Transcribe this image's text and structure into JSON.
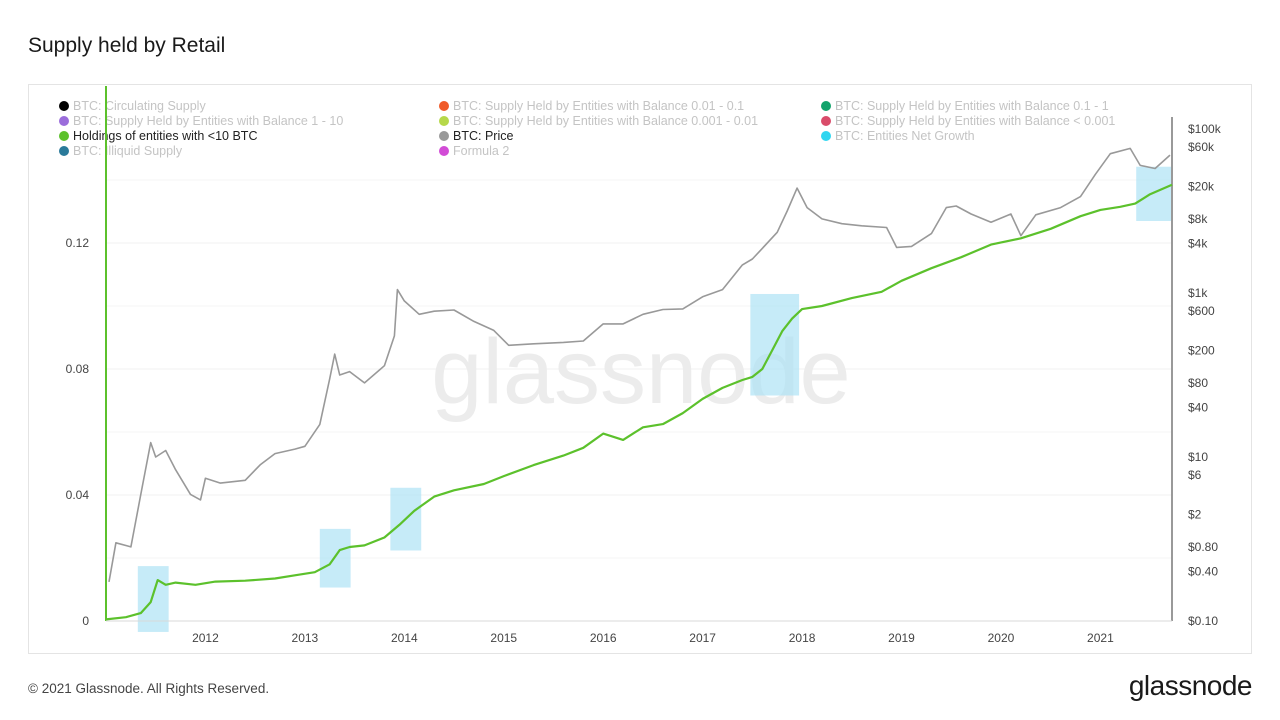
{
  "title": "Supply held by Retail",
  "footer": "© 2021 Glassnode. All Rights Reserved.",
  "brand": "glassnode",
  "watermark": "glassnode",
  "legend": [
    {
      "label": "BTC: Circulating Supply",
      "color": "#000000",
      "active": false
    },
    {
      "label": "BTC: Supply Held by Entities with Balance 0.01 - 0.1",
      "color": "#f05a28",
      "active": false
    },
    {
      "label": "BTC: Supply Held by Entities with Balance 0.1 - 1",
      "color": "#12a36b",
      "active": false
    },
    {
      "label": "BTC: Supply Held by Entities with Balance 1 - 10",
      "color": "#9b6ddb",
      "active": false
    },
    {
      "label": "BTC: Supply Held by Entities with Balance 0.001 - 0.01",
      "color": "#b6d84a",
      "active": false
    },
    {
      "label": "BTC: Supply Held by Entities with Balance < 0.001",
      "color": "#d94c6a",
      "active": false
    },
    {
      "label": "Holdings of entities with <10 BTC",
      "color": "#5cc12c",
      "active": true
    },
    {
      "label": "BTC: Price",
      "color": "#999999",
      "active": true
    },
    {
      "label": "BTC: Entities Net Growth",
      "color": "#2fd6f0",
      "active": false
    },
    {
      "label": "BTC: Illiquid Supply",
      "color": "#2a7a9a",
      "active": false
    },
    {
      "label": "Formula 2",
      "color": "#d24cd6",
      "active": false
    }
  ],
  "chart_data": {
    "type": "line",
    "x_ticks": [
      "2012",
      "2013",
      "2014",
      "2015",
      "2016",
      "2017",
      "2018",
      "2019",
      "2020",
      "2021"
    ],
    "y_left": {
      "ticks": [
        "0",
        "0.04",
        "0.08",
        "0.12"
      ],
      "values": [
        0,
        0.04,
        0.08,
        0.12
      ],
      "range": [
        0,
        0.16
      ]
    },
    "y_right": {
      "scale": "log",
      "ticks": [
        "$0.10",
        "$0.40",
        "$0.80",
        "$2",
        "$6",
        "$10",
        "$40",
        "$80",
        "$200",
        "$600",
        "$1k",
        "$4k",
        "$8k",
        "$20k",
        "$60k",
        "$100k"
      ],
      "values": [
        0.1,
        0.4,
        0.8,
        2,
        6,
        10,
        40,
        80,
        200,
        600,
        1000,
        4000,
        8000,
        20000,
        60000,
        100000
      ],
      "range": [
        0.1,
        100000
      ]
    },
    "x_range": [
      2011.0,
      2021.72
    ],
    "series": [
      {
        "name": "Holdings of entities with <10 BTC",
        "axis": "left",
        "color": "#5cc12c",
        "points": [
          [
            2011.0,
            0.0005
          ],
          [
            2011.2,
            0.0012
          ],
          [
            2011.35,
            0.0025
          ],
          [
            2011.45,
            0.006
          ],
          [
            2011.52,
            0.013
          ],
          [
            2011.6,
            0.0115
          ],
          [
            2011.7,
            0.0122
          ],
          [
            2011.9,
            0.0115
          ],
          [
            2012.1,
            0.0125
          ],
          [
            2012.4,
            0.0128
          ],
          [
            2012.7,
            0.0135
          ],
          [
            2012.9,
            0.0145
          ],
          [
            2013.1,
            0.0155
          ],
          [
            2013.25,
            0.018
          ],
          [
            2013.35,
            0.0225
          ],
          [
            2013.45,
            0.0235
          ],
          [
            2013.6,
            0.024
          ],
          [
            2013.8,
            0.0265
          ],
          [
            2013.95,
            0.0305
          ],
          [
            2014.1,
            0.035
          ],
          [
            2014.3,
            0.0395
          ],
          [
            2014.5,
            0.0415
          ],
          [
            2014.8,
            0.0435
          ],
          [
            2015.0,
            0.046
          ],
          [
            2015.3,
            0.0495
          ],
          [
            2015.6,
            0.0525
          ],
          [
            2015.8,
            0.055
          ],
          [
            2016.0,
            0.0595
          ],
          [
            2016.2,
            0.0575
          ],
          [
            2016.4,
            0.0615
          ],
          [
            2016.6,
            0.0625
          ],
          [
            2016.8,
            0.066
          ],
          [
            2017.0,
            0.0705
          ],
          [
            2017.2,
            0.074
          ],
          [
            2017.4,
            0.0765
          ],
          [
            2017.5,
            0.0775
          ],
          [
            2017.6,
            0.08
          ],
          [
            2017.7,
            0.086
          ],
          [
            2017.8,
            0.092
          ],
          [
            2017.9,
            0.096
          ],
          [
            2018.0,
            0.099
          ],
          [
            2018.2,
            0.1
          ],
          [
            2018.5,
            0.1025
          ],
          [
            2018.8,
            0.1045
          ],
          [
            2019.0,
            0.108
          ],
          [
            2019.3,
            0.112
          ],
          [
            2019.6,
            0.1155
          ],
          [
            2019.9,
            0.1195
          ],
          [
            2020.2,
            0.1215
          ],
          [
            2020.5,
            0.1245
          ],
          [
            2020.8,
            0.1285
          ],
          [
            2021.0,
            0.1305
          ],
          [
            2021.2,
            0.1315
          ],
          [
            2021.35,
            0.1325
          ],
          [
            2021.5,
            0.1355
          ],
          [
            2021.72,
            0.1385
          ]
        ]
      },
      {
        "name": "BTC: Price",
        "axis": "right",
        "color": "#999999",
        "points": [
          [
            2011.03,
            0.3
          ],
          [
            2011.1,
            0.9
          ],
          [
            2011.25,
            0.8
          ],
          [
            2011.35,
            3.5
          ],
          [
            2011.45,
            15
          ],
          [
            2011.5,
            10
          ],
          [
            2011.6,
            12
          ],
          [
            2011.7,
            7
          ],
          [
            2011.85,
            3.5
          ],
          [
            2011.95,
            3
          ],
          [
            2012.0,
            5.5
          ],
          [
            2012.15,
            4.8
          ],
          [
            2012.4,
            5.2
          ],
          [
            2012.55,
            8
          ],
          [
            2012.7,
            11
          ],
          [
            2012.9,
            12.5
          ],
          [
            2013.0,
            13.5
          ],
          [
            2013.15,
            25
          ],
          [
            2013.25,
            90
          ],
          [
            2013.3,
            180
          ],
          [
            2013.35,
            100
          ],
          [
            2013.45,
            110
          ],
          [
            2013.6,
            80
          ],
          [
            2013.8,
            130
          ],
          [
            2013.9,
            300
          ],
          [
            2013.93,
            1100
          ],
          [
            2014.0,
            800
          ],
          [
            2014.15,
            550
          ],
          [
            2014.3,
            600
          ],
          [
            2014.5,
            620
          ],
          [
            2014.7,
            450
          ],
          [
            2014.9,
            350
          ],
          [
            2015.05,
            230
          ],
          [
            2015.3,
            240
          ],
          [
            2015.6,
            250
          ],
          [
            2015.8,
            260
          ],
          [
            2016.0,
            420
          ],
          [
            2016.2,
            420
          ],
          [
            2016.4,
            550
          ],
          [
            2016.6,
            630
          ],
          [
            2016.8,
            640
          ],
          [
            2017.0,
            900
          ],
          [
            2017.2,
            1100
          ],
          [
            2017.4,
            2200
          ],
          [
            2017.5,
            2600
          ],
          [
            2017.6,
            3500
          ],
          [
            2017.75,
            5500
          ],
          [
            2017.85,
            10000
          ],
          [
            2017.95,
            19000
          ],
          [
            2018.05,
            11000
          ],
          [
            2018.2,
            8000
          ],
          [
            2018.4,
            7000
          ],
          [
            2018.6,
            6600
          ],
          [
            2018.85,
            6300
          ],
          [
            2018.95,
            3600
          ],
          [
            2019.1,
            3700
          ],
          [
            2019.3,
            5300
          ],
          [
            2019.45,
            11000
          ],
          [
            2019.55,
            11500
          ],
          [
            2019.7,
            9200
          ],
          [
            2019.9,
            7300
          ],
          [
            2020.1,
            9200
          ],
          [
            2020.2,
            5000
          ],
          [
            2020.35,
            9000
          ],
          [
            2020.6,
            11000
          ],
          [
            2020.8,
            15000
          ],
          [
            2020.95,
            28000
          ],
          [
            2021.1,
            50000
          ],
          [
            2021.3,
            58000
          ],
          [
            2021.4,
            36000
          ],
          [
            2021.55,
            33000
          ],
          [
            2021.7,
            48000
          ]
        ]
      }
    ],
    "highlight_ranges": [
      [
        2011.32,
        2011.63
      ],
      [
        2013.15,
        2013.46
      ],
      [
        2013.86,
        2014.17
      ],
      [
        2017.48,
        2017.97
      ],
      [
        2021.36,
        2021.72
      ]
    ]
  }
}
